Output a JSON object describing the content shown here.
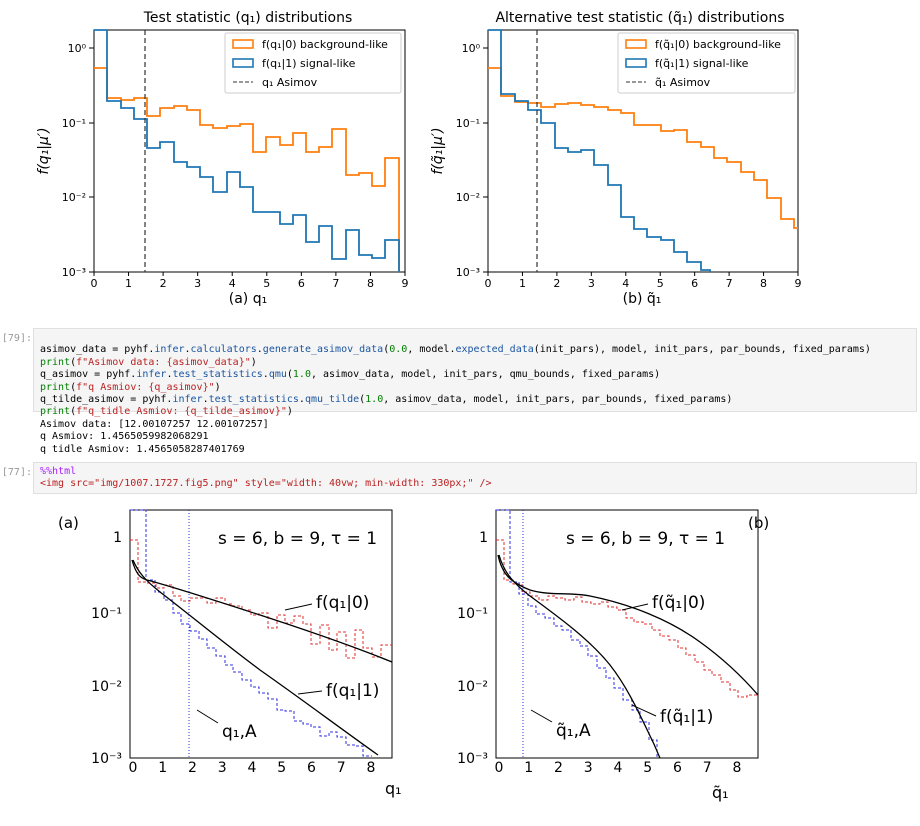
{
  "top_left_plot": {
    "title": "Test statistic (q₁) distributions",
    "ylabel": "f(q₁|μ′)",
    "xlabel": "(a) q₁",
    "legend": [
      "f(q₁|0) background-like",
      "f(q₁|1) signal-like",
      "q₁ Asimov"
    ],
    "xticks": [
      "0",
      "1",
      "2",
      "3",
      "4",
      "5",
      "6",
      "7",
      "8",
      "9"
    ]
  },
  "top_right_plot": {
    "title": "Alternative test statistic (q̃₁) distributions",
    "ylabel": "f(q̃₁|μ′)",
    "xlabel": "(b) q̃₁",
    "legend": [
      "f(q̃₁|0) background-like",
      "f(q̃₁|1) signal-like",
      "q̃₁ Asimov"
    ],
    "xticks": [
      "0",
      "1",
      "2",
      "3",
      "4",
      "5",
      "6",
      "7",
      "8",
      "9"
    ]
  },
  "cell79": {
    "prompt": "[79]:",
    "lines": [
      "asimov_data = pyhf.infer.calculators.generate_asimov_data(0.0, model.expected_data(init_pars), model, init_pars, par_bounds, fixed_params)",
      "print(f\"Asimov data: {asimov_data}\")",
      "q_asimov = pyhf.infer.test_statistics.qmu(1.0, asimov_data, model, init_pars, qmu_bounds, fixed_params)",
      "print(f\"q Asmiov: {q_asimov}\")",
      "q_tilde_asimov = pyhf.infer.test_statistics.qmu_tilde(1.0, asimov_data, model, init_pars, par_bounds, fixed_params)",
      "print(f\"q_tidle Asmiov: {q_tilde_asimov}\")"
    ],
    "output": [
      "Asimov data: [12.00107257 12.00107257]",
      "q Asmiov: 1.4565059982068291",
      "q tidle Asmiov: 1.4565058287401769"
    ]
  },
  "cell77": {
    "prompt": "[77]:",
    "magic": "%%html",
    "img_line": "<img src=\"img/1007.1727.fig5.png\" style=\"width: 40vw; min-width: 330px;\" />"
  },
  "bottom_left_plot": {
    "panel": "(a)",
    "annotation": "s = 6, b = 9, τ = 1",
    "label_bkg": "f(q₁|0)",
    "label_sig": "f(q₁|1)",
    "label_asimov": "q₁,A",
    "xlabel": "q₁",
    "xticks": [
      "0",
      "1",
      "2",
      "3",
      "4",
      "5",
      "6",
      "7",
      "8"
    ]
  },
  "bottom_right_plot": {
    "panel": "(b)",
    "annotation": "s = 6, b = 9, τ = 1",
    "label_bkg": "f(q̃₁|0)",
    "label_sig": "f(q̃₁|1)",
    "label_asimov": "q̃₁,A",
    "xlabel": "q̃₁",
    "xticks": [
      "0",
      "1",
      "2",
      "3",
      "4",
      "5",
      "6",
      "7",
      "8"
    ]
  },
  "colors": {
    "orange": "#ff7f0e",
    "blue": "#1f77b4",
    "red_dashed": "#e03030",
    "blue_dashed": "#3030e0"
  }
}
